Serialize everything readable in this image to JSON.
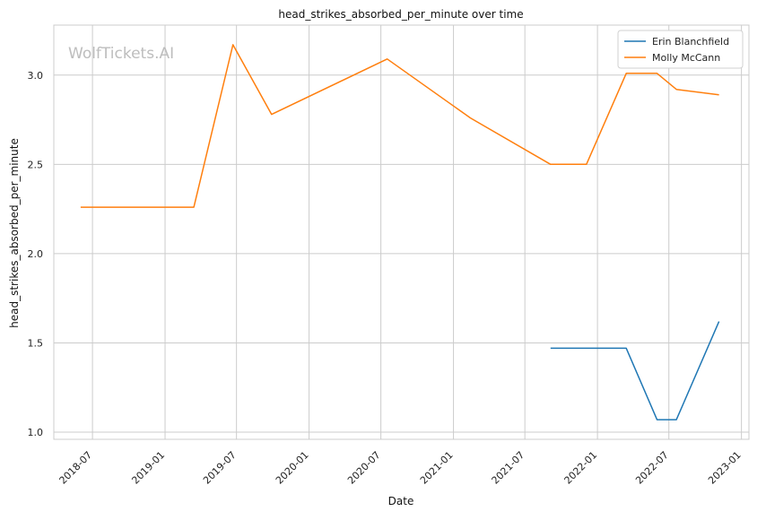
{
  "chart_data": {
    "type": "line",
    "title": "head_strikes_absorbed_per_minute over time",
    "xlabel": "Date",
    "ylabel": "head_strikes_absorbed_per_minute",
    "watermark": "WolfTickets.AI",
    "x_ticks": [
      "2018-07",
      "2019-01",
      "2019-07",
      "2020-01",
      "2020-07",
      "2021-01",
      "2021-07",
      "2022-01",
      "2022-07",
      "2023-01"
    ],
    "y_ticks": [
      "1.0",
      "1.5",
      "2.0",
      "2.5",
      "3.0"
    ],
    "xlim": [
      "2018-03-25",
      "2023-01-20"
    ],
    "ylim": [
      0.96,
      3.28
    ],
    "grid": true,
    "legend_position": "top-right",
    "series": [
      {
        "name": "Erin Blanchfield",
        "color": "#1f77b4",
        "points": [
          {
            "x": "2021-09-04",
            "y": 1.47
          },
          {
            "x": "2022-03-15",
            "y": 1.47
          },
          {
            "x": "2022-06-01",
            "y": 1.07
          },
          {
            "x": "2022-07-20",
            "y": 1.07
          },
          {
            "x": "2022-11-05",
            "y": 1.62
          }
        ]
      },
      {
        "name": "Molly McCann",
        "color": "#ff7f0e",
        "points": [
          {
            "x": "2018-06-01",
            "y": 2.26
          },
          {
            "x": "2019-03-15",
            "y": 2.26
          },
          {
            "x": "2019-06-22",
            "y": 3.17
          },
          {
            "x": "2019-09-28",
            "y": 2.78
          },
          {
            "x": "2020-07-17",
            "y": 3.09
          },
          {
            "x": "2021-02-13",
            "y": 2.76
          },
          {
            "x": "2021-09-04",
            "y": 2.5
          },
          {
            "x": "2021-12-04",
            "y": 2.5
          },
          {
            "x": "2022-03-15",
            "y": 3.01
          },
          {
            "x": "2022-06-01",
            "y": 3.01
          },
          {
            "x": "2022-07-20",
            "y": 2.92
          },
          {
            "x": "2022-11-05",
            "y": 2.89
          }
        ]
      }
    ]
  }
}
